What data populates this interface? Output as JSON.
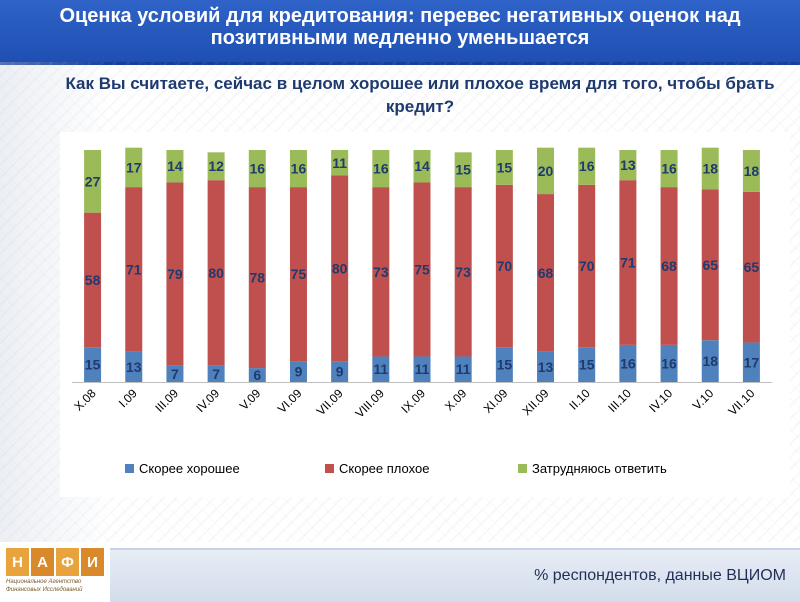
{
  "header": {
    "title": "Оценка условий для кредитования: перевес негативных оценок над позитивными медленно уменьшается"
  },
  "question": "Как Вы считаете, сейчас в целом хорошее или плохое время для того, чтобы брать кредит?",
  "source": "% респондентов, данные ВЦИОМ",
  "logo": {
    "letters": [
      "Н",
      "А",
      "Ф",
      "И"
    ],
    "subtitle": "Национальное Агентство Финансовых Исследований"
  },
  "colors": {
    "good": "#4f81bd",
    "bad": "#c0504d",
    "unsure": "#9bbb59",
    "header": "#2559bf",
    "label": "#1f3a6e"
  },
  "chart_data": {
    "type": "bar",
    "stacked": true,
    "categories": [
      "X.08",
      "I.09",
      "III.09",
      "IV.09",
      "V.09",
      "VI.09",
      "VII.09",
      "VIII.09",
      "IX.09",
      "X.09",
      "XI.09",
      "XII.09",
      "II.10",
      "III.10",
      "IV.10",
      "V.10",
      "VII.10"
    ],
    "series": [
      {
        "name": "Скорее хорошее",
        "values": [
          15,
          13,
          7,
          7,
          6,
          9,
          9,
          11,
          11,
          11,
          15,
          13,
          15,
          16,
          16,
          18,
          17
        ]
      },
      {
        "name": "Скорее плохое",
        "values": [
          58,
          71,
          79,
          80,
          78,
          75,
          80,
          73,
          75,
          73,
          70,
          68,
          70,
          71,
          68,
          65,
          65
        ]
      },
      {
        "name": "Затрудняюсь ответить",
        "values": [
          27,
          17,
          14,
          12,
          16,
          16,
          11,
          16,
          14,
          15,
          15,
          20,
          16,
          13,
          16,
          18,
          18
        ]
      }
    ],
    "ylim": [
      0,
      100
    ],
    "legend": "bottom"
  }
}
